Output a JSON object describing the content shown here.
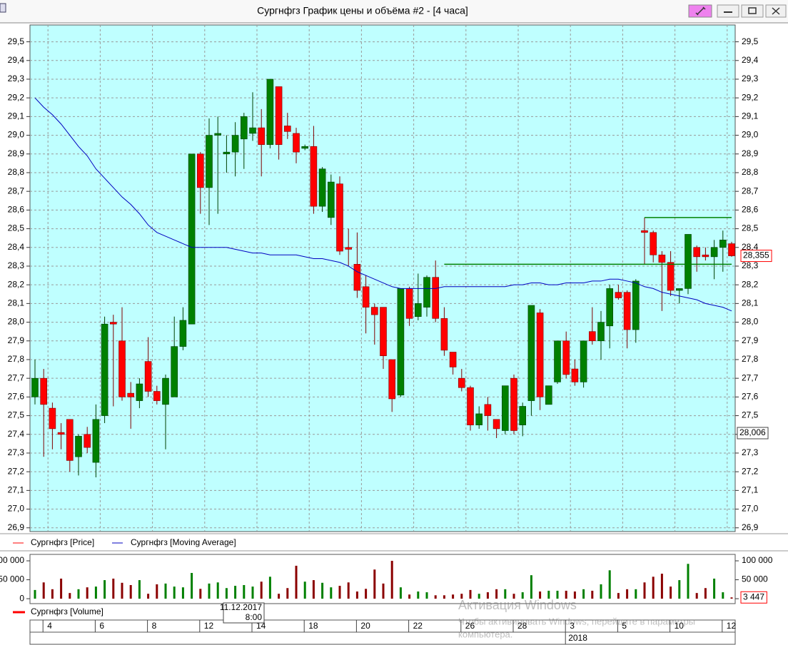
{
  "window": {
    "title": "Сургнфгз График цены и объёма #2 - [4 часа]"
  },
  "chart_data": [
    {
      "type": "candlestick",
      "series": [
        {
          "name": "Сургнфгз [Price]",
          "up_color": "#008000",
          "down_color": "#ff0000",
          "open": [
            27.6,
            27.7,
            27.54,
            27.41,
            27.48,
            27.28,
            27.4,
            27.25,
            27.5,
            28.0,
            27.9,
            27.62,
            27.58,
            27.79,
            27.63,
            27.56,
            27.6,
            27.87,
            27.99,
            28.9,
            28.72,
            29.0,
            28.9,
            28.91,
            28.98,
            29.01,
            29.04,
            28.95,
            29.26,
            29.05,
            29.01,
            28.93,
            28.94,
            28.62,
            28.56,
            28.74,
            28.4,
            28.31,
            28.19,
            28.08,
            28.08,
            27.8,
            27.61,
            28.18,
            28.03,
            28.08,
            28.24,
            28.02,
            27.84,
            27.7,
            27.65,
            27.45,
            27.56,
            27.48,
            27.42,
            27.7,
            27.45,
            27.58,
            28.05,
            27.56,
            27.68,
            27.9,
            27.75,
            27.68,
            27.95,
            27.9,
            27.98,
            28.16,
            28.16,
            27.96,
            28.49,
            28.48,
            28.36,
            28.32,
            28.17,
            28.18,
            28.4,
            28.36,
            28.35,
            28.4,
            28.42
          ],
          "high": [
            27.8,
            27.75,
            27.57,
            27.46,
            27.48,
            27.4,
            27.44,
            27.56,
            28.03,
            28.04,
            28.08,
            27.68,
            27.7,
            27.92,
            27.66,
            27.72,
            28.03,
            28.08,
            28.9,
            28.91,
            29.09,
            29.1,
            29.0,
            29.07,
            29.12,
            29.23,
            29.14,
            29.3,
            29.26,
            29.12,
            29.04,
            28.95,
            29.05,
            28.83,
            28.79,
            28.78,
            28.5,
            28.48,
            28.25,
            28.1,
            28.08,
            27.8,
            28.18,
            28.19,
            28.26,
            28.25,
            28.33,
            28.08,
            27.84,
            27.75,
            27.66,
            27.55,
            27.6,
            27.48,
            27.66,
            27.72,
            27.57,
            28.09,
            28.07,
            27.66,
            27.9,
            27.95,
            27.8,
            27.9,
            28.08,
            28.06,
            28.2,
            28.2,
            28.17,
            28.23,
            28.56,
            28.49,
            28.38,
            28.38,
            28.18,
            28.47,
            28.41,
            28.4,
            28.44,
            28.49,
            28.43
          ],
          "low": [
            27.56,
            27.28,
            27.32,
            27.32,
            27.2,
            27.18,
            27.3,
            27.17,
            27.46,
            27.55,
            27.58,
            27.43,
            27.54,
            27.6,
            27.56,
            27.32,
            27.6,
            27.85,
            27.99,
            28.58,
            28.52,
            28.58,
            28.8,
            28.78,
            28.82,
            28.97,
            28.78,
            28.93,
            28.87,
            28.98,
            28.85,
            28.92,
            28.58,
            28.59,
            28.52,
            28.36,
            28.3,
            28.13,
            27.94,
            27.88,
            27.75,
            27.52,
            27.6,
            27.98,
            28.01,
            28.03,
            28.0,
            27.82,
            27.72,
            27.63,
            27.42,
            27.43,
            27.42,
            27.38,
            27.4,
            27.4,
            27.39,
            27.5,
            27.53,
            27.56,
            27.67,
            27.7,
            27.66,
            27.65,
            27.88,
            27.8,
            27.86,
            28.12,
            27.86,
            27.89,
            28.31,
            28.32,
            28.06,
            28.14,
            28.1,
            28.15,
            28.27,
            28.33,
            28.23,
            28.27,
            28.35
          ],
          "close": [
            27.7,
            27.56,
            27.43,
            27.4,
            27.26,
            27.39,
            27.33,
            27.48,
            27.99,
            27.99,
            27.6,
            27.6,
            27.67,
            27.63,
            27.58,
            27.7,
            27.87,
            28.01,
            28.9,
            28.72,
            29.0,
            29.01,
            28.91,
            29.0,
            29.1,
            29.04,
            28.95,
            29.3,
            28.95,
            29.02,
            28.91,
            28.94,
            28.62,
            28.82,
            28.75,
            28.38,
            28.39,
            28.17,
            28.08,
            28.04,
            27.82,
            27.59,
            28.18,
            28.02,
            28.1,
            28.24,
            28.02,
            27.85,
            27.76,
            27.65,
            27.45,
            27.51,
            27.5,
            27.43,
            27.66,
            27.42,
            27.55,
            28.09,
            27.6,
            27.66,
            27.9,
            27.72,
            27.68,
            27.9,
            27.9,
            28.0,
            28.18,
            28.13,
            27.96,
            28.22,
            28.48,
            28.36,
            28.32,
            28.17,
            28.18,
            28.47,
            28.35,
            28.35,
            28.4,
            28.44,
            28.355
          ]
        },
        {
          "name": "Сургнфгз [Moving Average]",
          "type": "line",
          "color": "#0000c0",
          "values": [
            29.2,
            29.15,
            29.11,
            29.06,
            29.0,
            28.94,
            28.89,
            28.82,
            28.77,
            28.72,
            28.67,
            28.63,
            28.58,
            28.52,
            28.48,
            28.46,
            28.44,
            28.42,
            28.4,
            28.4,
            28.4,
            28.4,
            28.4,
            28.39,
            28.38,
            28.37,
            28.37,
            28.36,
            28.36,
            28.36,
            28.36,
            28.35,
            28.34,
            28.34,
            28.33,
            28.32,
            28.3,
            28.27,
            28.25,
            28.23,
            28.21,
            28.19,
            28.18,
            28.18,
            28.18,
            28.18,
            28.18,
            28.19,
            28.19,
            28.19,
            28.19,
            28.19,
            28.19,
            28.19,
            28.19,
            28.2,
            28.2,
            28.21,
            28.21,
            28.2,
            28.2,
            28.21,
            28.21,
            28.21,
            28.22,
            28.22,
            28.23,
            28.23,
            28.22,
            28.21,
            28.19,
            28.18,
            28.16,
            28.15,
            28.14,
            28.13,
            28.12,
            28.1,
            28.09,
            28.08,
            28.06
          ]
        }
      ],
      "levels": [
        {
          "value": 28.31,
          "start": 47,
          "end": 80,
          "color": "#008000"
        },
        {
          "value": 28.56,
          "start": 70,
          "end": 80,
          "color": "#008000"
        }
      ],
      "marker_labels": [
        {
          "value": 28.355,
          "label": "28,355",
          "color": "#ff0000"
        }
      ],
      "side_label": "28,006",
      "xlim": [
        -0.574,
        80.41
      ],
      "ylim": [
        26.88,
        29.59
      ],
      "yticks": [
        {
          "value": 26.9,
          "label": "26,9"
        },
        {
          "value": 27,
          "label": "27,0"
        },
        {
          "value": 27.1,
          "label": "27,1"
        },
        {
          "value": 27.2,
          "label": "27,2"
        },
        {
          "value": 27.3,
          "label": "27,3"
        },
        {
          "value": 27.4,
          "label": "27,4"
        },
        {
          "value": 27.5,
          "label": "27,5"
        },
        {
          "value": 27.6,
          "label": "27,6"
        },
        {
          "value": 27.7,
          "label": "27,7"
        },
        {
          "value": 27.8,
          "label": "27,8"
        },
        {
          "value": 27.9,
          "label": "27,9"
        },
        {
          "value": 28,
          "label": "28,0"
        },
        {
          "value": 28.1,
          "label": "28,1"
        },
        {
          "value": 28.2,
          "label": "28,2"
        },
        {
          "value": 28.3,
          "label": "28,3"
        },
        {
          "value": 28.4,
          "label": "28,4"
        },
        {
          "value": 28.5,
          "label": "28,5"
        },
        {
          "value": 28.6,
          "label": "28,6"
        },
        {
          "value": 28.7,
          "label": "28,7"
        },
        {
          "value": 28.8,
          "label": "28,8"
        },
        {
          "value": 28.9,
          "label": "28,9"
        },
        {
          "value": 29,
          "label": "29,0"
        },
        {
          "value": 29.1,
          "label": "29,1"
        },
        {
          "value": 29.2,
          "label": "29,2"
        },
        {
          "value": 29.3,
          "label": "29,3"
        },
        {
          "value": 29.4,
          "label": "29,4"
        },
        {
          "value": 29.5,
          "label": "29,5"
        }
      ],
      "grid": true
    },
    {
      "type": "bar",
      "series": [
        {
          "name": "Сургнфгз [Volume]",
          "up_color": "#008000",
          "down_color": "#8b0000",
          "values": [
            23000,
            43000,
            25000,
            53000,
            15000,
            25000,
            30000,
            32000,
            49000,
            53000,
            42000,
            36000,
            49000,
            13000,
            38000,
            40000,
            32000,
            30000,
            68000,
            26000,
            40000,
            43000,
            28000,
            34000,
            36000,
            32000,
            45000,
            58000,
            13000,
            28000,
            87000,
            45000,
            49000,
            42000,
            30000,
            34000,
            43000,
            19000,
            26000,
            77000,
            40000,
            100000,
            30000,
            11000,
            19000,
            17000,
            9000,
            9000,
            11000,
            13000,
            23000,
            13000,
            17000,
            25000,
            25000,
            13000,
            17000,
            62000,
            19000,
            21000,
            21000,
            21000,
            19000,
            25000,
            21000,
            38000,
            75000,
            15000,
            25000,
            25000,
            43000,
            58000,
            66000,
            32000,
            49000,
            92000,
            15000,
            28000,
            53000,
            17000,
            3447
          ]
        }
      ],
      "marker_labels": [
        {
          "value": 3447,
          "label": "3 447",
          "color": "#ff0000"
        }
      ],
      "xlim": [
        -0.574,
        80.41
      ],
      "ylim": [
        -13000,
        117000
      ],
      "yticks": [
        0,
        {
          "value": 50000,
          "label": "50 000"
        },
        {
          "value": 100000,
          "label": "100 000"
        }
      ],
      "xticks": [
        {
          "value": 1,
          "label": "4"
        },
        {
          "value": 7,
          "label": "6"
        },
        {
          "value": 13,
          "label": "8"
        },
        {
          "value": 19,
          "label": "12"
        },
        {
          "value": 25,
          "label": "14"
        },
        {
          "value": 31,
          "label": "18"
        },
        {
          "value": 37,
          "label": "20"
        },
        {
          "value": 43,
          "label": "22"
        },
        {
          "value": 49,
          "label": "26"
        },
        {
          "value": 55,
          "label": "28"
        },
        {
          "value": 61,
          "label": "3"
        },
        {
          "value": 67,
          "label": "5"
        },
        {
          "value": 73,
          "label": "10"
        },
        {
          "value": 79,
          "label": "12"
        }
      ],
      "year_ticks": [
        {
          "value": 61,
          "label": "2018"
        }
      ],
      "tooltip": [
        "11.12.2017",
        "8:00"
      ],
      "grid": false
    }
  ],
  "watermark": [
    "Активация Windows",
    "Чтобы активировать Windows, перейдите в параметры",
    "компьютера."
  ]
}
